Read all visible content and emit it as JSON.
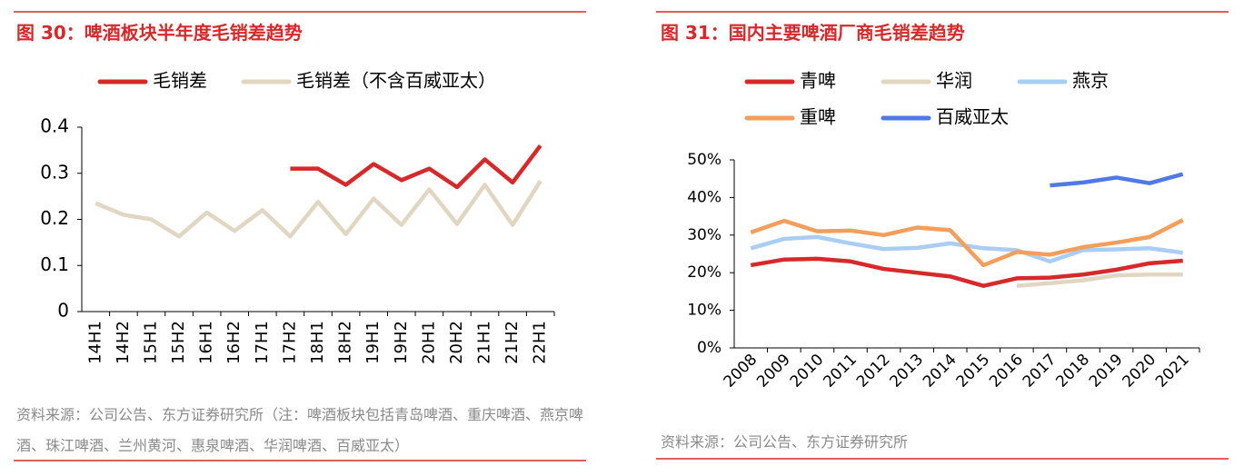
{
  "chart_data": [
    {
      "type": "line",
      "title": "图 30：啤酒板块半年度毛销差趋势",
      "categories": [
        "14H1",
        "14H2",
        "15H1",
        "15H2",
        "16H1",
        "16H2",
        "17H1",
        "17H2",
        "18H1",
        "18H2",
        "19H1",
        "19H2",
        "20H1",
        "20H2",
        "21H1",
        "21H2",
        "22H1"
      ],
      "series": [
        {
          "name": "毛销差",
          "color": "#d7282a",
          "values": [
            null,
            null,
            null,
            null,
            null,
            null,
            null,
            0.31,
            0.31,
            0.275,
            0.32,
            0.285,
            0.31,
            0.27,
            0.33,
            0.28,
            0.36
          ]
        },
        {
          "name": "毛销差（不含百威亚太）",
          "color": "#e0d6c2",
          "values": [
            0.235,
            0.21,
            0.2,
            0.163,
            0.215,
            0.175,
            0.22,
            0.163,
            0.238,
            0.168,
            0.245,
            0.188,
            0.265,
            0.19,
            0.275,
            0.188,
            0.283
          ]
        }
      ],
      "ylim": [
        0,
        0.4
      ],
      "yticks": [
        0,
        0.1,
        0.2,
        0.3,
        0.4
      ],
      "source": "资料来源：公司公告、东方证券研究所（注：啤酒板块包括青岛啤酒、重庆啤酒、燕京啤酒、珠江啤酒、兰州黄河、惠泉啤酒、华润啤酒、百威亚太）"
    },
    {
      "type": "line",
      "title": "图 31：国内主要啤酒厂商毛销差趋势",
      "categories": [
        "2008",
        "2009",
        "2010",
        "2011",
        "2012",
        "2013",
        "2014",
        "2015",
        "2016",
        "2017",
        "2018",
        "2019",
        "2020",
        "2021"
      ],
      "series": [
        {
          "name": "青啤",
          "color": "#d7282a",
          "values": [
            22,
            23.5,
            23.7,
            23,
            21,
            20,
            19,
            16.5,
            18.5,
            18.7,
            19.5,
            20.8,
            22.5,
            23.2
          ]
        },
        {
          "name": "华润",
          "color": "#e0d6c2",
          "values": [
            null,
            null,
            null,
            null,
            null,
            null,
            null,
            null,
            16.5,
            17.2,
            18,
            19.3,
            19.5,
            19.5
          ]
        },
        {
          "name": "燕京",
          "color": "#a9cdf4",
          "values": [
            26.5,
            29,
            29.5,
            27.8,
            26.3,
            26.6,
            27.8,
            26.5,
            26,
            23,
            26,
            26.2,
            26.5,
            25.3
          ]
        },
        {
          "name": "重啤",
          "color": "#f59d5a",
          "values": [
            30.7,
            33.8,
            31,
            31.2,
            30,
            32,
            31.3,
            22,
            25.5,
            24.8,
            26.8,
            28,
            29.5,
            34
          ]
        },
        {
          "name": "百威亚太",
          "color": "#4f79e6",
          "values": [
            null,
            null,
            null,
            null,
            null,
            null,
            null,
            null,
            null,
            43.2,
            44,
            45.3,
            43.8,
            46.2
          ]
        }
      ],
      "ylim": [
        0,
        50
      ],
      "yticks": [
        {
          "value": 0,
          "label": "0%"
        },
        {
          "value": 10,
          "label": "10%"
        },
        {
          "value": 20,
          "label": "20%"
        },
        {
          "value": 30,
          "label": "30%"
        },
        {
          "value": 40,
          "label": "40%"
        },
        {
          "value": 50,
          "label": "50%"
        }
      ],
      "source": "资料来源：公司公告、东方证券研究所"
    }
  ]
}
